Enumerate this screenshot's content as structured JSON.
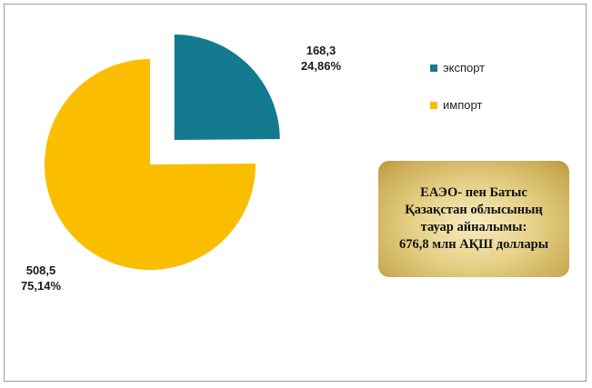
{
  "chart_data": {
    "type": "pie",
    "slices": [
      {
        "name": "экспорт",
        "value": 168.3,
        "percent": 24.86,
        "value_label": "168,3",
        "percent_label": "24,86%",
        "color": "#147a8f",
        "exploded": true
      },
      {
        "name": "импорт",
        "value": 508.5,
        "percent": 75.14,
        "value_label": "508,5",
        "percent_label": "75,14%",
        "color": "#fbbd00",
        "exploded": false
      }
    ],
    "legend_position": "right",
    "title": ""
  },
  "info_box": {
    "lines": [
      "ЕАЭО- пен Батыс",
      "Қазақстан облысының",
      "тауар айналымы:",
      "676,8 млн АҚШ доллары"
    ]
  }
}
